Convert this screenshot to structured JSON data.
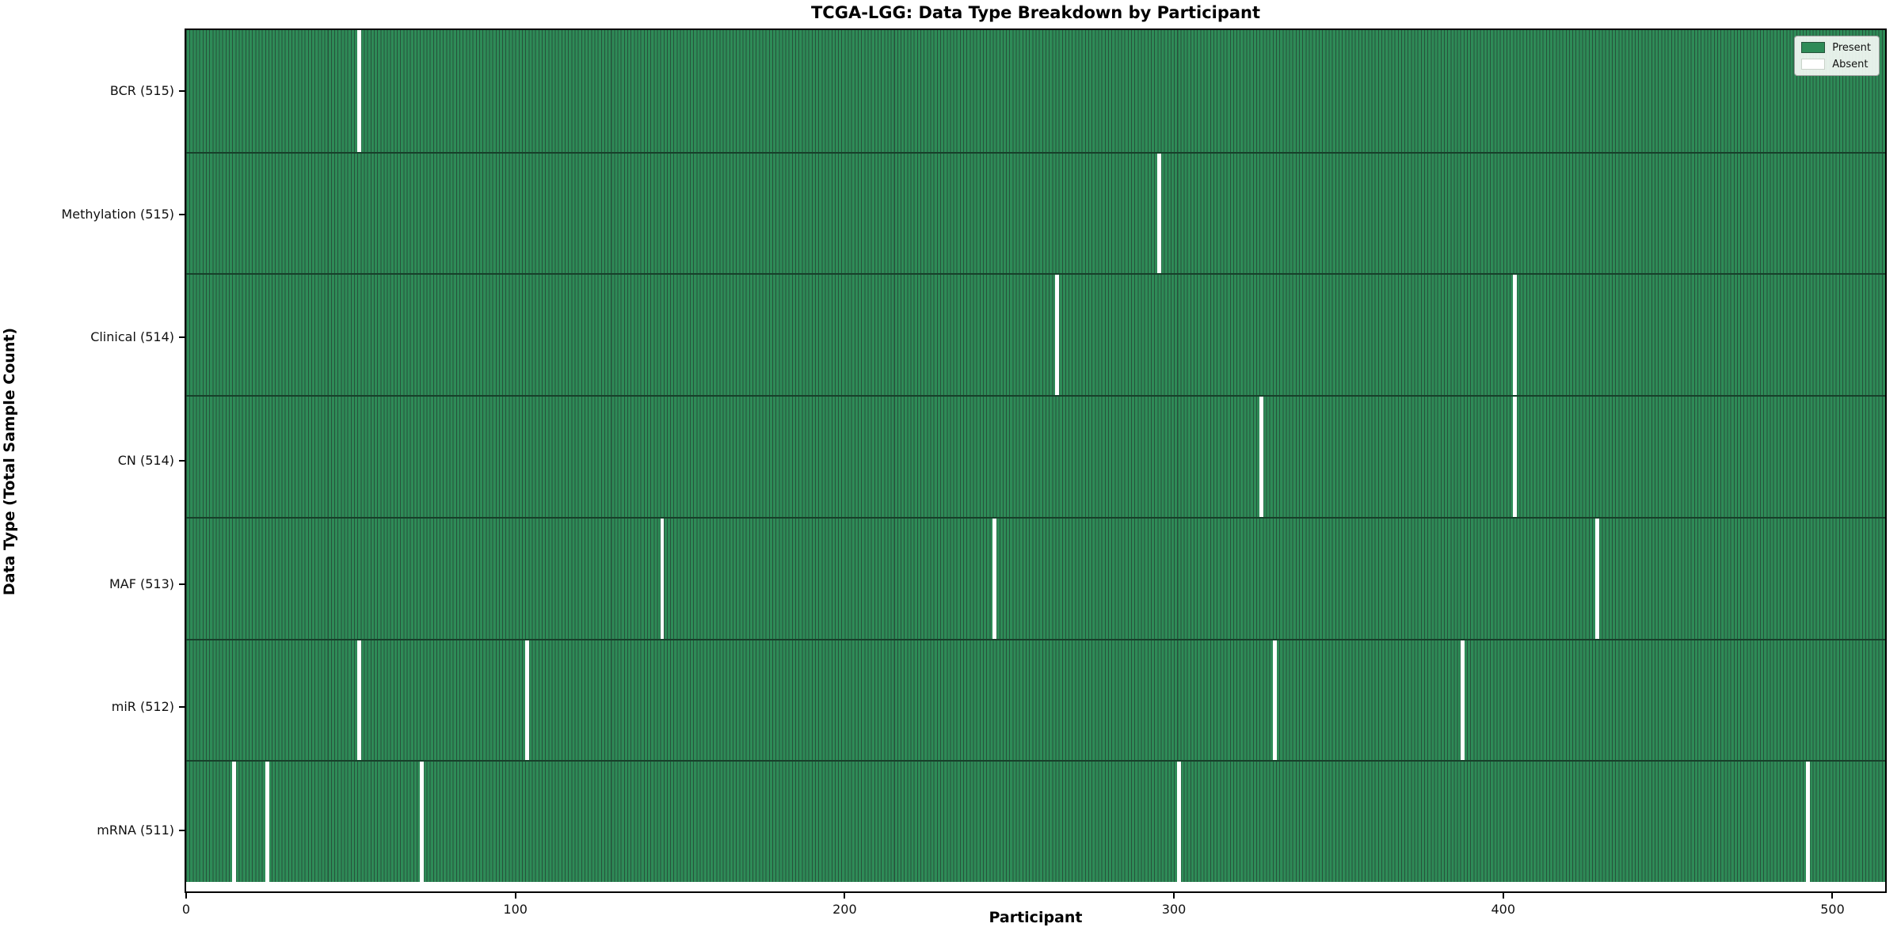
{
  "title": "TCGA-LGG: Data Type Breakdown by Participant",
  "xlabel": "Participant",
  "ylabel": "Data Type (Total Sample Count)",
  "legend": {
    "present_label": "Present",
    "absent_label": "Absent"
  },
  "colors": {
    "present_fill": "#2e8b57",
    "present_edge": "#26523b",
    "absent_fill": "#ffffff",
    "row_divider": "#17402a",
    "spine": "#000000"
  },
  "chart_data": {
    "type": "heatmap",
    "title": "TCGA-LGG: Data Type Breakdown by Participant",
    "xlabel": "Participant",
    "ylabel": "Data Type (Total Sample Count)",
    "n_participants": 516,
    "x_ticks": [
      0,
      100,
      200,
      300,
      400,
      500
    ],
    "xlim": [
      0,
      516
    ],
    "grid": false,
    "legend_position": "upper right",
    "legend_entries": [
      {
        "label": "Present",
        "color": "#2e8b57"
      },
      {
        "label": "Absent",
        "color": "#ffffff"
      }
    ],
    "rows": [
      {
        "label": "BCR (515)",
        "data_type": "BCR",
        "total_samples": 515,
        "absent_participants": [
          52
        ]
      },
      {
        "label": "Methylation (515)",
        "data_type": "Methylation",
        "total_samples": 515,
        "absent_participants": [
          295
        ]
      },
      {
        "label": "Clinical (514)",
        "data_type": "Clinical",
        "total_samples": 514,
        "absent_participants": [
          264,
          403
        ]
      },
      {
        "label": "CN (514)",
        "data_type": "CN",
        "total_samples": 514,
        "absent_participants": [
          326,
          403
        ]
      },
      {
        "label": "MAF (513)",
        "data_type": "MAF",
        "total_samples": 513,
        "absent_participants": [
          144,
          245,
          428
        ]
      },
      {
        "label": "miR (512)",
        "data_type": "miR",
        "total_samples": 512,
        "absent_participants": [
          52,
          103,
          330,
          387
        ]
      },
      {
        "label": "mRNA (511)",
        "data_type": "mRNA",
        "total_samples": 511,
        "absent_participants": [
          14,
          24,
          71,
          301,
          492
        ]
      }
    ]
  }
}
